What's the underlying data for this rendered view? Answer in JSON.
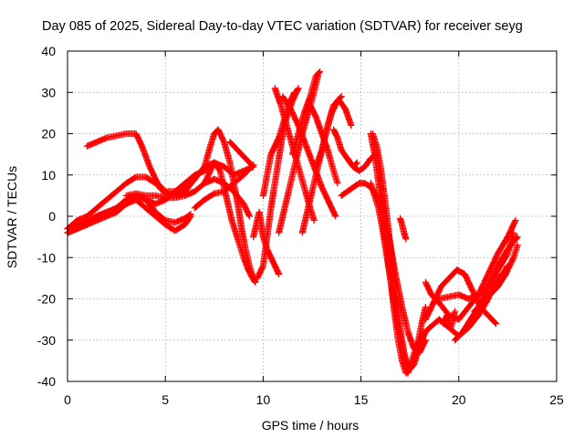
{
  "chart_data": {
    "type": "scatter",
    "title": "Day 085 of 2025, Sidereal Day-to-day VTEC variation (SDTVAR) for receiver seyg",
    "xlabel": "GPS time / hours",
    "ylabel": "SDTVAR / TECUs",
    "xlim": [
      0,
      25
    ],
    "ylim": [
      -40,
      40
    ],
    "xticks": [
      0,
      5,
      10,
      15,
      20,
      25
    ],
    "yticks": [
      -40,
      -30,
      -20,
      -10,
      0,
      10,
      20,
      30,
      40
    ],
    "grid": true,
    "marker": "+",
    "color": "#ff0000",
    "tracks": [
      [
        [
          0.0,
          -4
        ],
        [
          0.5,
          -3
        ],
        [
          1.0,
          -2
        ],
        [
          1.5,
          -1
        ],
        [
          2.0,
          0
        ],
        [
          2.5,
          1
        ],
        [
          3.0,
          3
        ],
        [
          3.5,
          4
        ],
        [
          4.0,
          2
        ],
        [
          4.5,
          0
        ],
        [
          5.0,
          -2
        ],
        [
          5.5,
          -3.5
        ],
        [
          6.0,
          -2
        ],
        [
          6.3,
          0
        ]
      ],
      [
        [
          1.0,
          17
        ],
        [
          1.5,
          18
        ],
        [
          2.0,
          19
        ],
        [
          2.5,
          19.5
        ],
        [
          3.0,
          20
        ],
        [
          3.5,
          20
        ],
        [
          3.8,
          17
        ],
        [
          4.2,
          12
        ],
        [
          4.6,
          8
        ],
        [
          5.0,
          6
        ],
        [
          5.5,
          6
        ],
        [
          6.0,
          7
        ],
        [
          6.5,
          9
        ],
        [
          7.0,
          12
        ],
        [
          7.5,
          13
        ],
        [
          8.0,
          12
        ],
        [
          8.5,
          10
        ],
        [
          9.0,
          11
        ],
        [
          9.5,
          12
        ]
      ],
      [
        [
          0.0,
          -3
        ],
        [
          0.5,
          -2
        ],
        [
          1.0,
          -1
        ],
        [
          1.5,
          0
        ],
        [
          2.0,
          1
        ],
        [
          2.5,
          2
        ],
        [
          3.0,
          4
        ],
        [
          3.5,
          5
        ],
        [
          4.0,
          4
        ],
        [
          4.5,
          3
        ],
        [
          5.0,
          4
        ],
        [
          5.5,
          6
        ],
        [
          6.0,
          8
        ],
        [
          6.5,
          10
        ],
        [
          7.0,
          11
        ],
        [
          7.5,
          13
        ]
      ],
      [
        [
          0.0,
          -4
        ],
        [
          0.5,
          -3
        ],
        [
          1.0,
          -2
        ],
        [
          1.5,
          0
        ],
        [
          2.0,
          1
        ],
        [
          2.5,
          1.5
        ],
        [
          3.0,
          3
        ],
        [
          3.5,
          5
        ],
        [
          4.0,
          4
        ],
        [
          4.5,
          1
        ],
        [
          5.0,
          -1
        ],
        [
          5.5,
          -1.5
        ],
        [
          6.0,
          -0.5
        ],
        [
          6.3,
          0.5
        ]
      ],
      [
        [
          0.0,
          -3
        ],
        [
          0.5,
          -1
        ],
        [
          1.0,
          0
        ],
        [
          1.5,
          2
        ],
        [
          2.0,
          4
        ],
        [
          2.5,
          6
        ],
        [
          3.0,
          8
        ],
        [
          3.5,
          9.5
        ],
        [
          4.0,
          9.5
        ],
        [
          4.5,
          8
        ],
        [
          5.0,
          5.5
        ],
        [
          5.5,
          5
        ],
        [
          6.0,
          6
        ],
        [
          6.5,
          9
        ]
      ],
      [
        [
          3.0,
          5
        ],
        [
          3.5,
          5.5
        ],
        [
          4.0,
          5
        ],
        [
          4.5,
          5
        ],
        [
          5.0,
          4.5
        ],
        [
          5.5,
          4.5
        ],
        [
          6.0,
          5
        ],
        [
          6.5,
          6
        ],
        [
          7.0,
          8
        ],
        [
          7.5,
          9
        ],
        [
          8.0,
          8
        ],
        [
          8.5,
          6
        ],
        [
          9.0,
          3
        ],
        [
          9.3,
          0
        ]
      ],
      [
        [
          7.0,
          12
        ],
        [
          7.3,
          17
        ],
        [
          7.5,
          20
        ],
        [
          7.7,
          21
        ],
        [
          8.0,
          18
        ],
        [
          8.3,
          13
        ],
        [
          8.5,
          8
        ],
        [
          8.7,
          3
        ],
        [
          8.9,
          -3
        ],
        [
          9.1,
          -8
        ],
        [
          9.3,
          -12
        ],
        [
          9.5,
          -15
        ]
      ],
      [
        [
          7.0,
          8
        ],
        [
          7.5,
          13
        ],
        [
          7.8,
          11
        ],
        [
          8.0,
          7
        ],
        [
          8.2,
          3
        ],
        [
          8.4,
          -1
        ],
        [
          8.6,
          -4
        ],
        [
          8.8,
          -7
        ],
        [
          9.0,
          -10
        ],
        [
          9.2,
          -12.5
        ],
        [
          9.4,
          -14.5
        ],
        [
          9.6,
          -16
        ]
      ],
      [
        [
          6.5,
          2
        ],
        [
          7.0,
          4
        ],
        [
          7.5,
          5.5
        ],
        [
          8.0,
          6
        ],
        [
          8.5,
          8
        ],
        [
          9.0,
          10
        ],
        [
          9.5,
          12.5
        ]
      ],
      [
        [
          8.3,
          18
        ],
        [
          8.6,
          16.5
        ],
        [
          9.0,
          14.5
        ],
        [
          9.4,
          12.5
        ]
      ],
      [
        [
          9.5,
          -5
        ],
        [
          9.7,
          -1
        ],
        [
          9.8,
          1
        ],
        [
          10.0,
          -5
        ],
        [
          10.2,
          -8
        ],
        [
          10.4,
          -10
        ],
        [
          10.6,
          -12
        ],
        [
          10.8,
          -14
        ]
      ],
      [
        [
          10.0,
          5
        ],
        [
          10.2,
          10
        ],
        [
          10.4,
          15
        ],
        [
          10.6,
          17
        ],
        [
          10.8,
          19
        ],
        [
          11.0,
          22
        ],
        [
          11.3,
          27
        ],
        [
          11.6,
          30
        ]
      ],
      [
        [
          9.7,
          -15
        ],
        [
          10.0,
          -12
        ],
        [
          10.2,
          -5
        ],
        [
          10.4,
          2
        ],
        [
          10.6,
          8
        ],
        [
          10.8,
          14
        ],
        [
          11.0,
          20
        ],
        [
          11.2,
          24
        ],
        [
          11.5,
          28
        ],
        [
          11.8,
          31
        ]
      ],
      [
        [
          10.8,
          -4
        ],
        [
          11.1,
          2
        ],
        [
          11.4,
          8
        ],
        [
          11.7,
          14
        ],
        [
          12.0,
          20
        ],
        [
          12.3,
          25
        ],
        [
          12.6,
          30
        ],
        [
          12.8,
          34
        ]
      ],
      [
        [
          10.6,
          31
        ],
        [
          10.9,
          27
        ],
        [
          11.2,
          22
        ],
        [
          11.5,
          17
        ],
        [
          11.8,
          12
        ],
        [
          12.1,
          7
        ],
        [
          12.4,
          2
        ],
        [
          12.6,
          -1
        ]
      ],
      [
        [
          11.5,
          15
        ],
        [
          11.8,
          20
        ],
        [
          12.1,
          25
        ],
        [
          12.4,
          29
        ],
        [
          12.7,
          34
        ],
        [
          12.9,
          35
        ]
      ],
      [
        [
          11.0,
          29
        ],
        [
          11.4,
          26
        ],
        [
          11.8,
          22
        ],
        [
          12.2,
          17
        ],
        [
          12.6,
          12
        ],
        [
          13.0,
          7
        ],
        [
          13.4,
          3
        ],
        [
          13.7,
          0
        ]
      ],
      [
        [
          12.0,
          -4
        ],
        [
          12.3,
          2
        ],
        [
          12.6,
          8
        ],
        [
          12.9,
          14
        ],
        [
          13.2,
          20
        ],
        [
          13.5,
          25
        ],
        [
          13.8,
          28
        ],
        [
          14.0,
          29
        ]
      ],
      [
        [
          12.7,
          12
        ],
        [
          13.0,
          16
        ],
        [
          13.3,
          22
        ],
        [
          13.6,
          27
        ],
        [
          13.9,
          28
        ],
        [
          14.2,
          26
        ],
        [
          14.5,
          22
        ]
      ],
      [
        [
          12.4,
          27
        ],
        [
          12.7,
          24
        ],
        [
          13.0,
          20
        ],
        [
          13.3,
          16
        ],
        [
          13.6,
          11
        ],
        [
          13.8,
          8
        ]
      ],
      [
        [
          13.6,
          21
        ],
        [
          13.8,
          19
        ],
        [
          14.0,
          16
        ],
        [
          14.3,
          14
        ],
        [
          14.6,
          12
        ],
        [
          14.8,
          13
        ]
      ],
      [
        [
          14.0,
          5
        ],
        [
          14.3,
          6
        ],
        [
          14.6,
          7
        ],
        [
          14.9,
          8
        ],
        [
          15.2,
          8
        ],
        [
          15.5,
          7
        ],
        [
          15.8,
          5
        ]
      ],
      [
        [
          14.3,
          14
        ],
        [
          14.6,
          12
        ],
        [
          14.9,
          11
        ],
        [
          15.2,
          12
        ],
        [
          15.5,
          14
        ],
        [
          15.8,
          15
        ]
      ],
      [
        [
          15.5,
          8
        ],
        [
          15.7,
          5
        ],
        [
          15.9,
          2
        ],
        [
          16.1,
          -3
        ],
        [
          16.3,
          -9
        ],
        [
          16.5,
          -15
        ],
        [
          16.7,
          -21
        ],
        [
          16.9,
          -27
        ],
        [
          17.1,
          -31
        ],
        [
          17.3,
          -35
        ],
        [
          17.5,
          -37
        ],
        [
          17.7,
          -36
        ],
        [
          17.9,
          -33
        ],
        [
          18.1,
          -30
        ],
        [
          18.3,
          -28
        ],
        [
          18.5,
          -27
        ]
      ],
      [
        [
          15.5,
          20
        ],
        [
          15.7,
          15
        ],
        [
          15.9,
          8
        ],
        [
          16.1,
          0
        ],
        [
          16.3,
          -8
        ],
        [
          16.5,
          -15
        ],
        [
          16.7,
          -23
        ],
        [
          16.9,
          -30
        ],
        [
          17.1,
          -35
        ],
        [
          17.3,
          -38
        ],
        [
          17.5,
          -37
        ],
        [
          17.7,
          -35
        ],
        [
          17.9,
          -31
        ],
        [
          18.1,
          -26
        ],
        [
          18.3,
          -22
        ]
      ],
      [
        [
          15.6,
          20
        ],
        [
          15.8,
          17
        ],
        [
          16.0,
          12
        ],
        [
          16.2,
          5
        ],
        [
          16.4,
          -3
        ],
        [
          16.6,
          -11
        ],
        [
          16.8,
          -19
        ],
        [
          17.0,
          -27
        ],
        [
          17.2,
          -33
        ],
        [
          17.4,
          -38
        ],
        [
          17.6,
          -35
        ],
        [
          17.8,
          -32
        ],
        [
          18.0,
          -30
        ],
        [
          18.2,
          -28
        ]
      ],
      [
        [
          16.0,
          5
        ],
        [
          16.2,
          0
        ],
        [
          16.5,
          -7
        ],
        [
          16.8,
          -15
        ],
        [
          17.1,
          -22
        ],
        [
          17.4,
          -28
        ],
        [
          17.7,
          -32
        ],
        [
          18.0,
          -33
        ],
        [
          18.3,
          -30
        ]
      ],
      [
        [
          17.0,
          -0.5
        ],
        [
          17.1,
          -2
        ],
        [
          17.2,
          -4
        ],
        [
          17.3,
          -5.5
        ]
      ],
      [
        [
          18.3,
          -16
        ],
        [
          18.6,
          -19
        ],
        [
          19.0,
          -21
        ],
        [
          19.5,
          -24
        ],
        [
          20.0,
          -25
        ],
        [
          20.5,
          -22
        ],
        [
          21.0,
          -19
        ],
        [
          21.5,
          -14
        ],
        [
          22.0,
          -9
        ],
        [
          22.5,
          -5
        ],
        [
          22.9,
          -1
        ]
      ],
      [
        [
          18.3,
          -25
        ],
        [
          18.7,
          -21
        ],
        [
          19.1,
          -17
        ],
        [
          19.5,
          -15
        ],
        [
          19.9,
          -13
        ],
        [
          20.3,
          -14
        ],
        [
          20.7,
          -18
        ],
        [
          21.1,
          -22
        ],
        [
          21.5,
          -24
        ],
        [
          21.9,
          -26
        ]
      ],
      [
        [
          18.5,
          -27
        ],
        [
          19.0,
          -25
        ],
        [
          19.5,
          -27
        ],
        [
          20.0,
          -29
        ],
        [
          20.5,
          -27
        ],
        [
          21.0,
          -24
        ],
        [
          21.5,
          -20
        ],
        [
          22.0,
          -13
        ],
        [
          22.5,
          -9
        ],
        [
          22.8,
          -4
        ]
      ],
      [
        [
          19.0,
          -20
        ],
        [
          19.5,
          -19.5
        ],
        [
          20.0,
          -19
        ],
        [
          20.5,
          -20
        ],
        [
          21.0,
          -19
        ],
        [
          21.5,
          -17
        ],
        [
          22.0,
          -16
        ],
        [
          22.5,
          -12
        ]
      ],
      [
        [
          19.8,
          -30
        ],
        [
          20.2,
          -28
        ],
        [
          20.6,
          -25
        ],
        [
          21.0,
          -22
        ],
        [
          21.5,
          -17
        ],
        [
          22.0,
          -12
        ],
        [
          22.5,
          -8
        ],
        [
          23.0,
          -5
        ]
      ],
      [
        [
          20.8,
          -23
        ],
        [
          21.2,
          -21
        ],
        [
          21.6,
          -19
        ],
        [
          22.0,
          -17
        ],
        [
          22.4,
          -14
        ],
        [
          22.8,
          -10
        ],
        [
          23.0,
          -7
        ]
      ],
      [
        [
          19.2,
          -26
        ],
        [
          19.4,
          -24
        ],
        [
          19.6,
          -27
        ],
        [
          19.8,
          -23
        ]
      ]
    ]
  }
}
